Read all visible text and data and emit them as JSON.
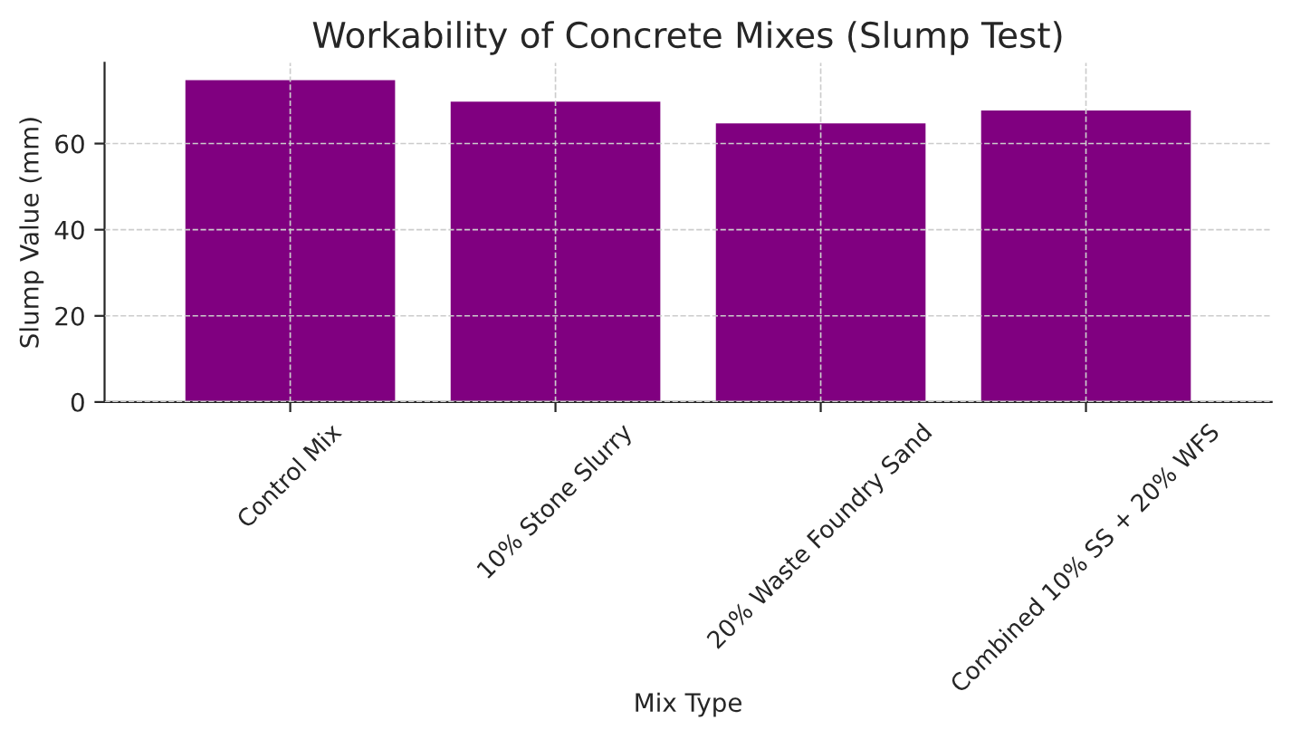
{
  "chart_data": {
    "type": "bar",
    "title": "Workability of Concrete Mixes (Slump Test)",
    "xlabel": "Mix Type",
    "ylabel": "Slump Value (mm)",
    "categories": [
      "Control Mix",
      "10% Stone Slurry",
      "20% Waste Foundry Sand",
      "Combined 10% SS + 20% WFS"
    ],
    "values": [
      75,
      70,
      65,
      68
    ],
    "color": "#800080",
    "ylim": [
      0,
      78.75
    ],
    "yticks": [
      0,
      20,
      40,
      60
    ],
    "grid": true
  }
}
